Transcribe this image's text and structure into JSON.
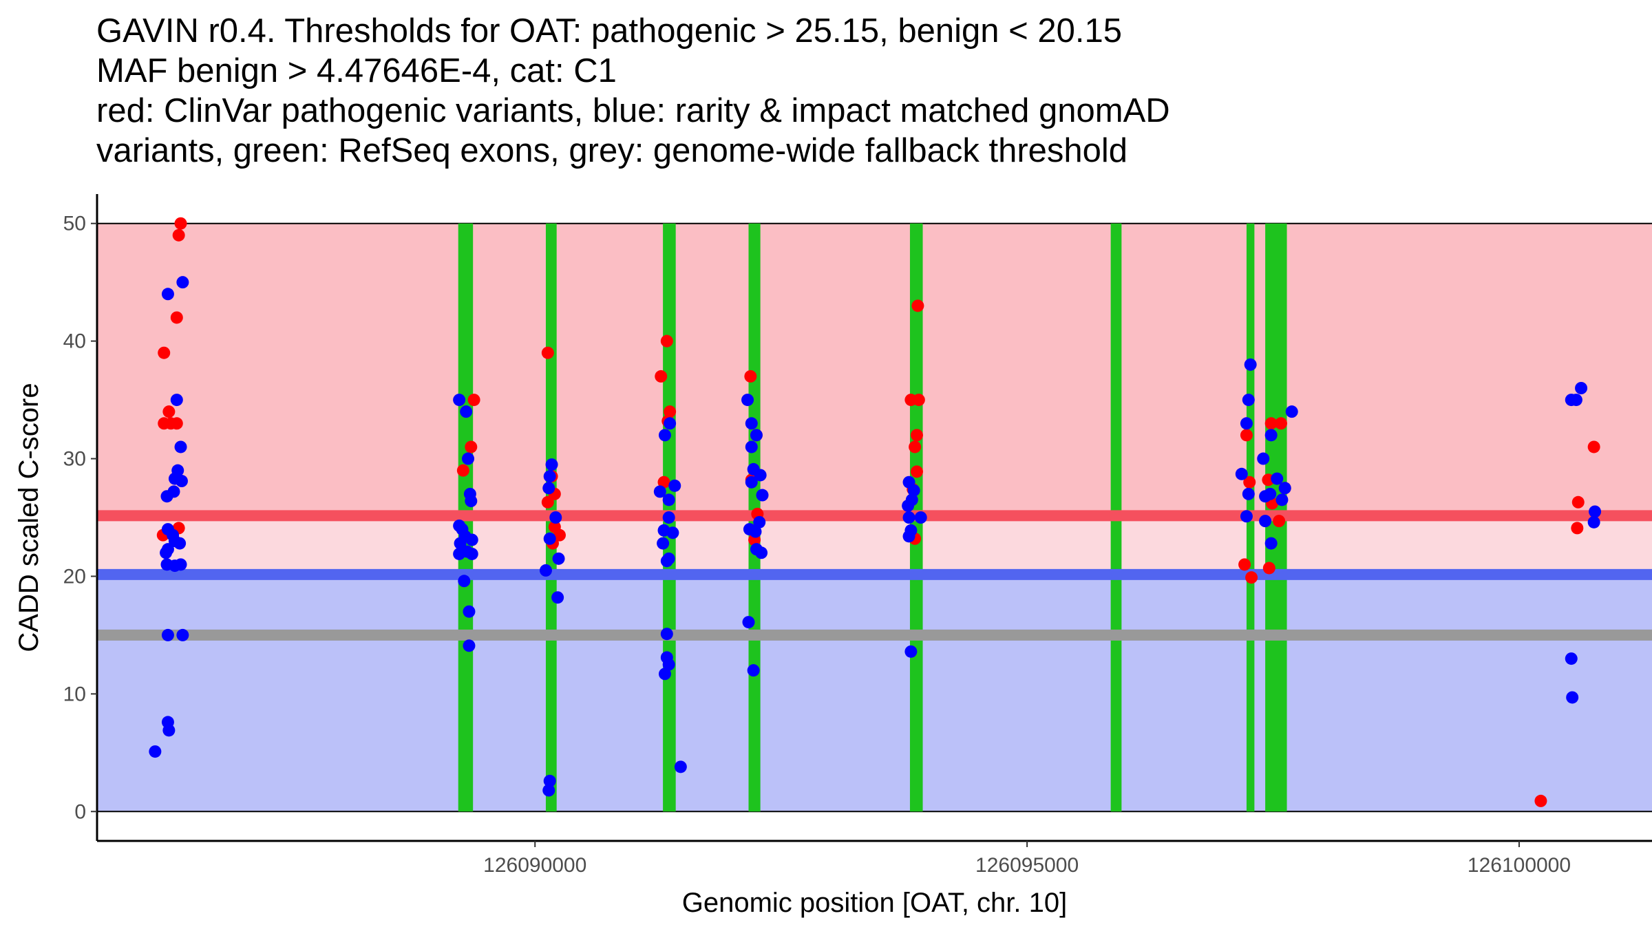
{
  "chart_data": {
    "type": "scatter",
    "title_lines": [
      "GAVIN r0.4. Thresholds for OAT: pathogenic > 25.15, benign < 20.15",
      "MAF benign > 4.47646E-4, cat: C1",
      "red: ClinVar pathogenic variants, blue: rarity & impact matched gnomAD",
      "variants, green: RefSeq exons, grey: genome-wide fallback threshold"
    ],
    "xlabel": "Genomic position [OAT, chr. 10]",
    "ylabel": "CADD scaled C-score",
    "xlim": [
      126085550,
      126101350
    ],
    "ylim": [
      -2.5,
      52.5
    ],
    "x_ticks": [
      126090000,
      126095000,
      126100000
    ],
    "x_tick_labels": [
      "126090000",
      "126095000",
      "126100000"
    ],
    "y_ticks": [
      0,
      10,
      20,
      30,
      40,
      50
    ],
    "y_tick_labels": [
      "0",
      "10",
      "20",
      "30",
      "40",
      "50"
    ],
    "thresholds": {
      "pathogenic": 25.15,
      "benign": 20.15,
      "fallback": 15.0,
      "region_top": 50,
      "region_bottom": 0
    },
    "colors": {
      "pathogenic_region": "#fbbec4",
      "middle_region": "#fcd9de",
      "benign_region": "#bbc1f9",
      "pathogenic_line": "#f5505e",
      "benign_line": "#5265f0",
      "fallback_line": "#999999",
      "exon": "#1ec31e",
      "clinvar": "#ff0000",
      "gnomad": "#0000ff"
    },
    "exons": [
      {
        "start": 126089220,
        "end": 126089370
      },
      {
        "start": 126090110,
        "end": 126090220
      },
      {
        "start": 126091300,
        "end": 126091430
      },
      {
        "start": 126092170,
        "end": 126092290
      },
      {
        "start": 126093810,
        "end": 126093940
      },
      {
        "start": 126095850,
        "end": 126095960
      },
      {
        "start": 126097230,
        "end": 126097310
      },
      {
        "start": 126097420,
        "end": 126097640
      }
    ],
    "series": [
      {
        "name": "ClinVar pathogenic variants",
        "color": "#ff0000",
        "points": [
          [
            126086400,
            50.0
          ],
          [
            126086380,
            49.0
          ],
          [
            126086360,
            42.0
          ],
          [
            126086230,
            39.0
          ],
          [
            126086280,
            34.0
          ],
          [
            126086230,
            33.0
          ],
          [
            126086300,
            33.0
          ],
          [
            126086360,
            33.0
          ],
          [
            126086380,
            24.1
          ],
          [
            126086220,
            23.5
          ],
          [
            126089270,
            29.0
          ],
          [
            126089350,
            31.0
          ],
          [
            126089380,
            35.0
          ],
          [
            126090130,
            39.0
          ],
          [
            126090170,
            28.5
          ],
          [
            126090200,
            27.0
          ],
          [
            126090130,
            26.3
          ],
          [
            126090200,
            24.2
          ],
          [
            126090250,
            23.5
          ],
          [
            126090180,
            22.8
          ],
          [
            126091280,
            37.0
          ],
          [
            126091340,
            40.0
          ],
          [
            126091370,
            34.0
          ],
          [
            126091350,
            33.2
          ],
          [
            126091310,
            28.0
          ],
          [
            126092190,
            37.0
          ],
          [
            126092250,
            32.0
          ],
          [
            126092200,
            28.2
          ],
          [
            126092260,
            25.3
          ],
          [
            126092230,
            23.1
          ],
          [
            126093820,
            35.0
          ],
          [
            126093900,
            35.0
          ],
          [
            126093890,
            43.0
          ],
          [
            126093880,
            32.0
          ],
          [
            126093860,
            31.0
          ],
          [
            126093880,
            28.9
          ],
          [
            126093840,
            27.4
          ],
          [
            126093860,
            23.2
          ],
          [
            126097230,
            32.0
          ],
          [
            126097260,
            28.0
          ],
          [
            126097210,
            21.0
          ],
          [
            126097280,
            19.9
          ],
          [
            126097480,
            33.0
          ],
          [
            126097580,
            33.0
          ],
          [
            126097620,
            27.5
          ],
          [
            126097450,
            28.2
          ],
          [
            126097490,
            26.2
          ],
          [
            126097560,
            24.7
          ],
          [
            126097460,
            20.7
          ],
          [
            126100220,
            0.9
          ],
          [
            126100600,
            26.3
          ],
          [
            126100590,
            24.1
          ],
          [
            126100760,
            31.0
          ]
        ]
      },
      {
        "name": "rarity & impact matched gnomAD variants",
        "color": "#0000ff",
        "points": [
          [
            126086420,
            45.0
          ],
          [
            126086270,
            44.0
          ],
          [
            126086360,
            35.0
          ],
          [
            126086400,
            31.0
          ],
          [
            126086370,
            29.0
          ],
          [
            126086340,
            28.3
          ],
          [
            126086410,
            28.1
          ],
          [
            126086330,
            27.2
          ],
          [
            126086260,
            26.8
          ],
          [
            126086270,
            24.0
          ],
          [
            126086320,
            23.5
          ],
          [
            126086340,
            23.0
          ],
          [
            126086390,
            22.8
          ],
          [
            126086250,
            22.0
          ],
          [
            126086270,
            22.3
          ],
          [
            126086260,
            21.0
          ],
          [
            126086340,
            20.9
          ],
          [
            126086400,
            21.0
          ],
          [
            126086270,
            15.0
          ],
          [
            126086420,
            15.0
          ],
          [
            126086270,
            7.6
          ],
          [
            126086280,
            6.9
          ],
          [
            126086140,
            5.1
          ],
          [
            126089230,
            35.0
          ],
          [
            126089300,
            34.0
          ],
          [
            126089320,
            30.0
          ],
          [
            126089340,
            27.0
          ],
          [
            126089350,
            26.4
          ],
          [
            126089230,
            24.3
          ],
          [
            126089260,
            24.0
          ],
          [
            126089290,
            23.4
          ],
          [
            126089360,
            23.1
          ],
          [
            126089240,
            22.8
          ],
          [
            126089310,
            22.1
          ],
          [
            126089230,
            21.9
          ],
          [
            126089360,
            21.9
          ],
          [
            126089280,
            19.6
          ],
          [
            126089330,
            17.0
          ],
          [
            126089330,
            14.1
          ],
          [
            126090170,
            29.5
          ],
          [
            126090150,
            28.5
          ],
          [
            126090140,
            27.5
          ],
          [
            126090210,
            25.0
          ],
          [
            126090150,
            23.2
          ],
          [
            126090240,
            21.5
          ],
          [
            126090110,
            20.5
          ],
          [
            126090230,
            18.2
          ],
          [
            126090150,
            2.6
          ],
          [
            126090140,
            1.8
          ],
          [
            126091370,
            33.0
          ],
          [
            126091320,
            32.0
          ],
          [
            126091420,
            27.7
          ],
          [
            126091270,
            27.2
          ],
          [
            126091360,
            26.5
          ],
          [
            126091360,
            25.0
          ],
          [
            126091310,
            23.9
          ],
          [
            126091400,
            23.7
          ],
          [
            126091300,
            22.8
          ],
          [
            126091360,
            21.5
          ],
          [
            126091340,
            21.3
          ],
          [
            126091340,
            15.1
          ],
          [
            126091340,
            13.1
          ],
          [
            126091360,
            12.5
          ],
          [
            126091320,
            11.7
          ],
          [
            126091480,
            3.8
          ],
          [
            126092160,
            35.0
          ],
          [
            126092200,
            33.0
          ],
          [
            126092250,
            32.0
          ],
          [
            126092200,
            31.0
          ],
          [
            126092220,
            29.1
          ],
          [
            126092290,
            28.6
          ],
          [
            126092200,
            28.0
          ],
          [
            126092310,
            26.9
          ],
          [
            126092280,
            24.6
          ],
          [
            126092180,
            24.0
          ],
          [
            126092240,
            23.8
          ],
          [
            126092250,
            22.3
          ],
          [
            126092300,
            22.0
          ],
          [
            126092170,
            16.1
          ],
          [
            126092220,
            12.0
          ],
          [
            126093800,
            28.0
          ],
          [
            126093850,
            27.3
          ],
          [
            126093830,
            26.5
          ],
          [
            126093790,
            26.0
          ],
          [
            126093800,
            25.0
          ],
          [
            126093920,
            25.0
          ],
          [
            126093820,
            23.9
          ],
          [
            126093800,
            23.4
          ],
          [
            126093820,
            13.6
          ],
          [
            126097270,
            38.0
          ],
          [
            126097250,
            35.0
          ],
          [
            126097230,
            33.0
          ],
          [
            126097480,
            32.0
          ],
          [
            126097400,
            30.0
          ],
          [
            126097180,
            28.7
          ],
          [
            126097540,
            28.3
          ],
          [
            126097620,
            27.5
          ],
          [
            126097250,
            27.0
          ],
          [
            126097420,
            26.8
          ],
          [
            126097470,
            27.0
          ],
          [
            126097590,
            26.5
          ],
          [
            126097230,
            25.1
          ],
          [
            126097420,
            24.7
          ],
          [
            126097480,
            22.8
          ],
          [
            126097690,
            34.0
          ],
          [
            126100630,
            36.0
          ],
          [
            126100530,
            35.0
          ],
          [
            126100580,
            35.0
          ],
          [
            126100770,
            25.5
          ],
          [
            126100760,
            24.6
          ],
          [
            126100530,
            13.0
          ],
          [
            126100540,
            9.7
          ]
        ]
      }
    ]
  }
}
